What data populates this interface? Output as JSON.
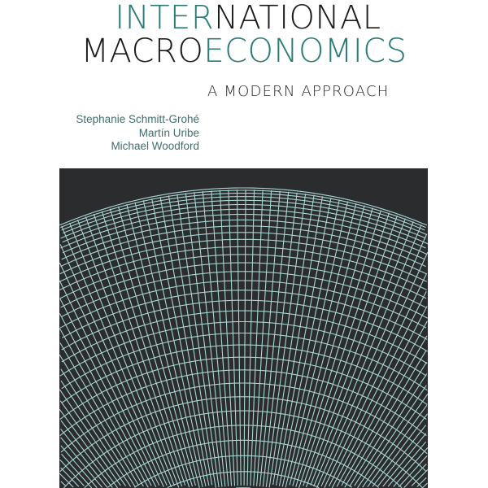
{
  "cover": {
    "title_line1": {
      "accent": "INTER",
      "rest": "NATIONAL"
    },
    "title_line2": {
      "rest": "MACRO",
      "accent": "ECONOMICS"
    },
    "subtitle": "A MODERN APPROACH",
    "authors": [
      "Stephanie Schmitt-Grohé",
      "Martín Uribe",
      "Michael Woodford"
    ]
  },
  "colors": {
    "accent": "#2b7c79",
    "title_dark": "#1c1c1c",
    "panel_background": "#2b2c2e",
    "grid_lines": "#a9d6d3"
  },
  "artwork": {
    "motif": "polar-grid-hemisphere"
  }
}
